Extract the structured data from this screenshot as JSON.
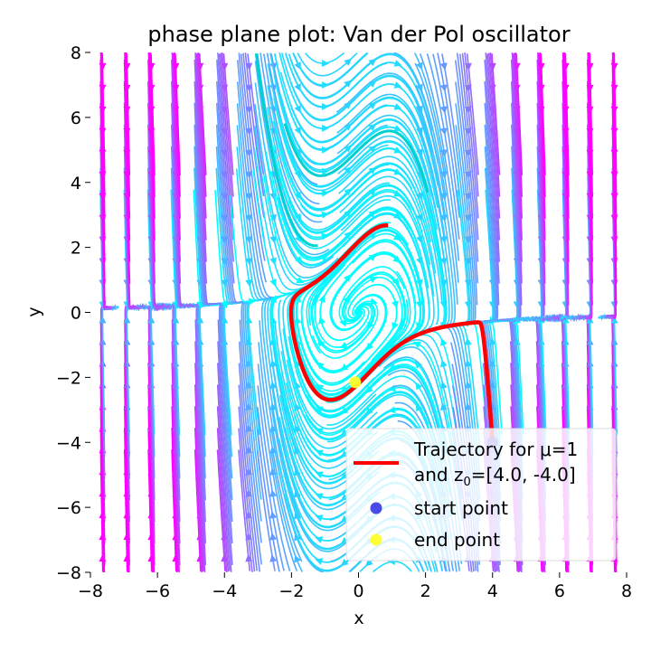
{
  "chart_data": {
    "type": "line",
    "title": "phase plane plot: Van der Pol oscillator",
    "xlabel": "x",
    "ylabel": "y",
    "xlim": [
      -8,
      8
    ],
    "ylim": [
      -8,
      8
    ],
    "xticks": [
      "−8",
      "−6",
      "−4",
      "−2",
      "0",
      "2",
      "4",
      "6",
      "8"
    ],
    "yticks": [
      "−8",
      "−6",
      "−4",
      "−2",
      "0",
      "2",
      "4",
      "6",
      "8"
    ],
    "grid": false,
    "legend_placement": "lower-right",
    "mu": 1,
    "initial_state": [
      4.0,
      -4.0
    ],
    "start_point": [
      4.0,
      -4.0
    ],
    "end_point": [
      -0.1,
      -2.15
    ],
    "legend": {
      "trajectory_line1": "Trajectory for μ=1",
      "trajectory_line2_prefix": "and z",
      "trajectory_line2_sub": "0",
      "trajectory_line2_suffix": "=[4.0, -4.0]",
      "start": "start point",
      "end": "end point"
    },
    "colors": {
      "trajectory": "#ff0000",
      "start_point": "#2a2ae0",
      "end_point": "#ffff2a",
      "stream_slow": "#00ffff",
      "stream_fast": "#ff00ff"
    }
  }
}
